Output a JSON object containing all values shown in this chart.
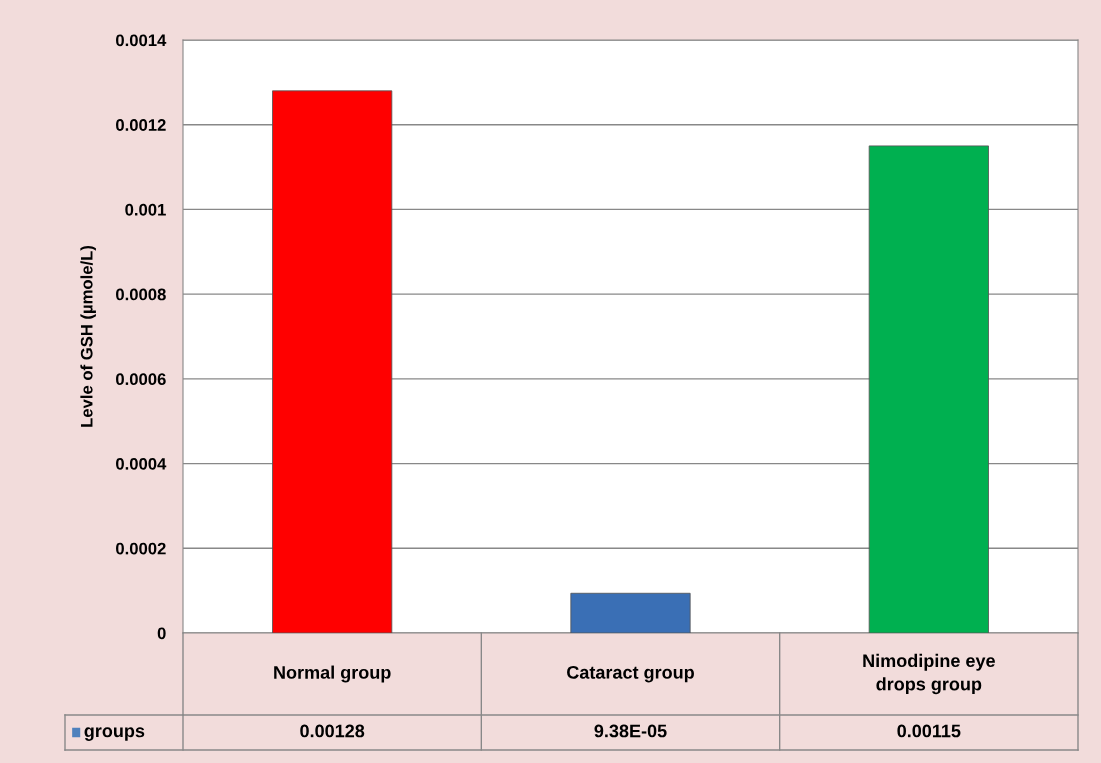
{
  "chart_data": {
    "type": "bar",
    "ylabel": "Levle of GSH (µmole/L)",
    "categories": [
      "Normal group",
      "Cataract group",
      "Nimodipine eye drops group"
    ],
    "series": [
      {
        "name": "groups",
        "color": "#4f81bd",
        "colors": [
          "#ff0000",
          "#3a6fb5",
          "#00b050"
        ],
        "values": [
          0.00128,
          9.38e-05,
          0.00115
        ],
        "value_labels": [
          "0.00128",
          "9.38E-05",
          "0.00115"
        ]
      }
    ],
    "ylim": [
      0,
      0.0014
    ],
    "yticks": [
      0,
      0.0002,
      0.0004,
      0.0006,
      0.0008,
      0.001,
      0.0012,
      0.0014
    ],
    "grid": "y"
  }
}
